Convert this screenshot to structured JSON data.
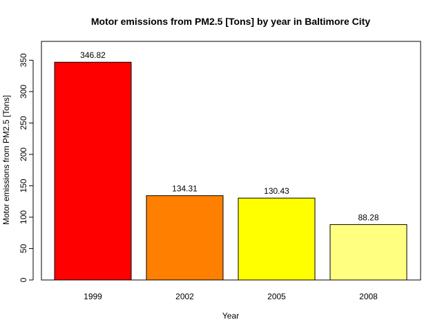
{
  "chart_data": {
    "type": "bar",
    "title": "Motor emissions from PM2.5 [Tons] by year in Baltimore City",
    "xlabel": "Year",
    "ylabel": "Motor emissions from PM2.5 [Tons]",
    "categories": [
      "1999",
      "2002",
      "2005",
      "2008"
    ],
    "values": [
      346.82,
      134.31,
      130.43,
      88.28
    ],
    "data_labels": [
      "346.82",
      "134.31",
      "130.43",
      "88.28"
    ],
    "colors": [
      "#ff0000",
      "#ff8000",
      "#ffff00",
      "#ffff80"
    ],
    "ylim": [
      0,
      380
    ],
    "yticks": [
      0,
      50,
      100,
      150,
      200,
      250,
      300,
      350
    ],
    "grid": false,
    "legend": "none"
  }
}
